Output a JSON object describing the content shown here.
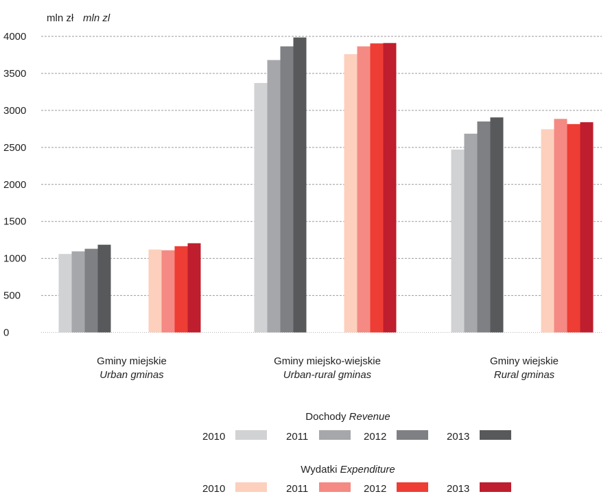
{
  "chart_data": {
    "type": "bar",
    "unit_label": {
      "pl": "mln zł",
      "en": "mln zl"
    },
    "ylim": [
      0,
      4000
    ],
    "yticks": [
      0,
      500,
      1000,
      1500,
      2000,
      2500,
      3000,
      3500,
      4000
    ],
    "grid": true,
    "categories": [
      {
        "pl": "Gminy miejskie",
        "en": "Urban gminas"
      },
      {
        "pl": "Gminy miejsko-wiejskie",
        "en": "Urban-rural gminas"
      },
      {
        "pl": "Gminy wiejskie",
        "en": "Rural gminas"
      }
    ],
    "groups": [
      {
        "name_pl": "Dochody",
        "name_en": "Revenue",
        "series": [
          {
            "name": "2010",
            "color": "#d1d2d4",
            "values": [
              1060,
              3370,
              2470
            ]
          },
          {
            "name": "2011",
            "color": "#a6a7aa",
            "values": [
              1095,
              3680,
              2685
            ]
          },
          {
            "name": "2012",
            "color": "#7f8084",
            "values": [
              1130,
              3865,
              2850
            ]
          },
          {
            "name": "2013",
            "color": "#58595b",
            "values": [
              1185,
              3985,
              2905
            ]
          }
        ]
      },
      {
        "name_pl": "Wydatki",
        "name_en": "Expenditure",
        "series": [
          {
            "name": "2010",
            "color": "#fcd0bd",
            "values": [
              1120,
              3760,
              2745
            ]
          },
          {
            "name": "2011",
            "color": "#f48a83",
            "values": [
              1110,
              3865,
              2885
            ]
          },
          {
            "name": "2012",
            "color": "#ee3d34",
            "values": [
              1165,
              3905,
              2815
            ]
          },
          {
            "name": "2013",
            "color": "#be1e2d",
            "values": [
              1205,
              3910,
              2840
            ]
          }
        ]
      }
    ],
    "legend_position": "bottom-center"
  }
}
